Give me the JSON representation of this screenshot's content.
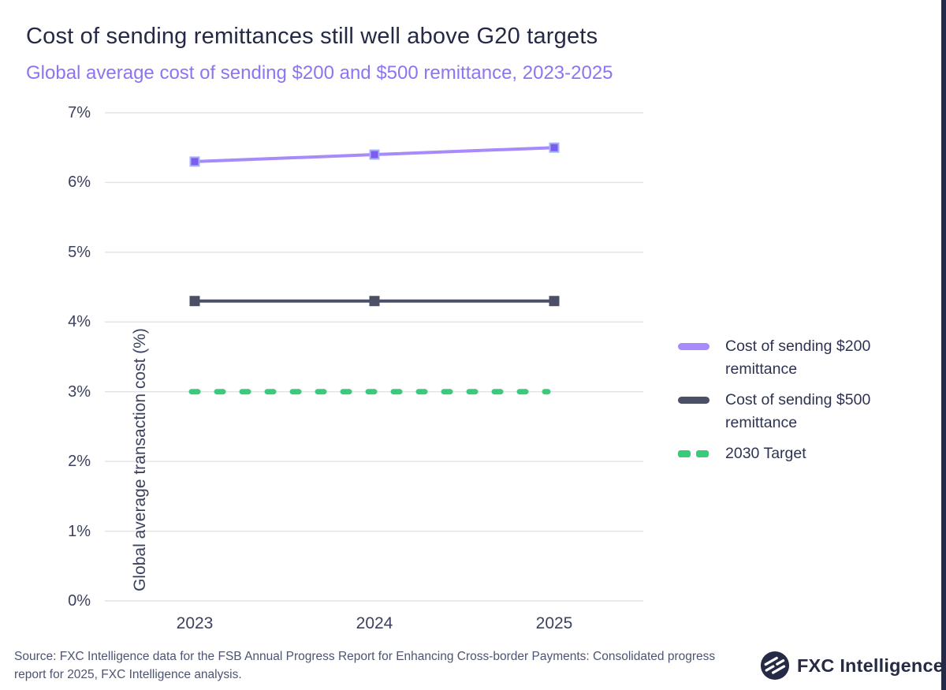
{
  "header": {
    "title": "Cost of sending remittances still well above G20 targets",
    "subtitle": "Global average cost of sending $200 and $500 remittance, 2023-2025"
  },
  "chart_data": {
    "type": "line",
    "title": "Cost of sending remittances still well above G20 targets",
    "subtitle": "Global average cost of sending $200 and $500 remittance, 2023-2025",
    "x": [
      "2023",
      "2024",
      "2025"
    ],
    "xlabel": "",
    "ylabel": "Global average transaction cost (%)",
    "ylim": [
      0,
      7
    ],
    "y_ticks": [
      "0%",
      "1%",
      "2%",
      "3%",
      "4%",
      "5%",
      "6%",
      "7%"
    ],
    "grid": "horizontal",
    "legend_position": "right",
    "series": [
      {
        "name": "Cost of sending $200 remittance",
        "values": [
          6.3,
          6.4,
          6.5
        ],
        "color": "#a78bfa",
        "marker_color": "#7b5cf0",
        "marker_stroke": "#a5b2f7",
        "style": "solid",
        "marker": "square"
      },
      {
        "name": "Cost of sending $500 remittance",
        "values": [
          4.3,
          4.3,
          4.3
        ],
        "color": "#4b5067",
        "marker_color": "#4b5067",
        "marker_stroke": "#4b5067",
        "style": "solid",
        "marker": "square"
      },
      {
        "name": "2030 Target",
        "values": [
          3.0,
          3.0,
          3.0
        ],
        "color": "#3bc97a",
        "style": "dashed",
        "marker": "none"
      }
    ]
  },
  "footer": {
    "source": "Source: FXC Intelligence data for the FSB Annual Progress Report for Enhancing Cross-border Payments: Consolidated progress report for 2025, FXC Intelligence analysis.",
    "logo_text": "FXC Intelligence"
  },
  "colors": {
    "title": "#242946",
    "subtitle": "#8e74f0",
    "axis_text": "#3b415f",
    "gridline": "#e4e4e8",
    "brand_navy": "#232946",
    "purple_line": "#a78bfa",
    "dark_line": "#4b5067",
    "green_target": "#3bc97a"
  }
}
